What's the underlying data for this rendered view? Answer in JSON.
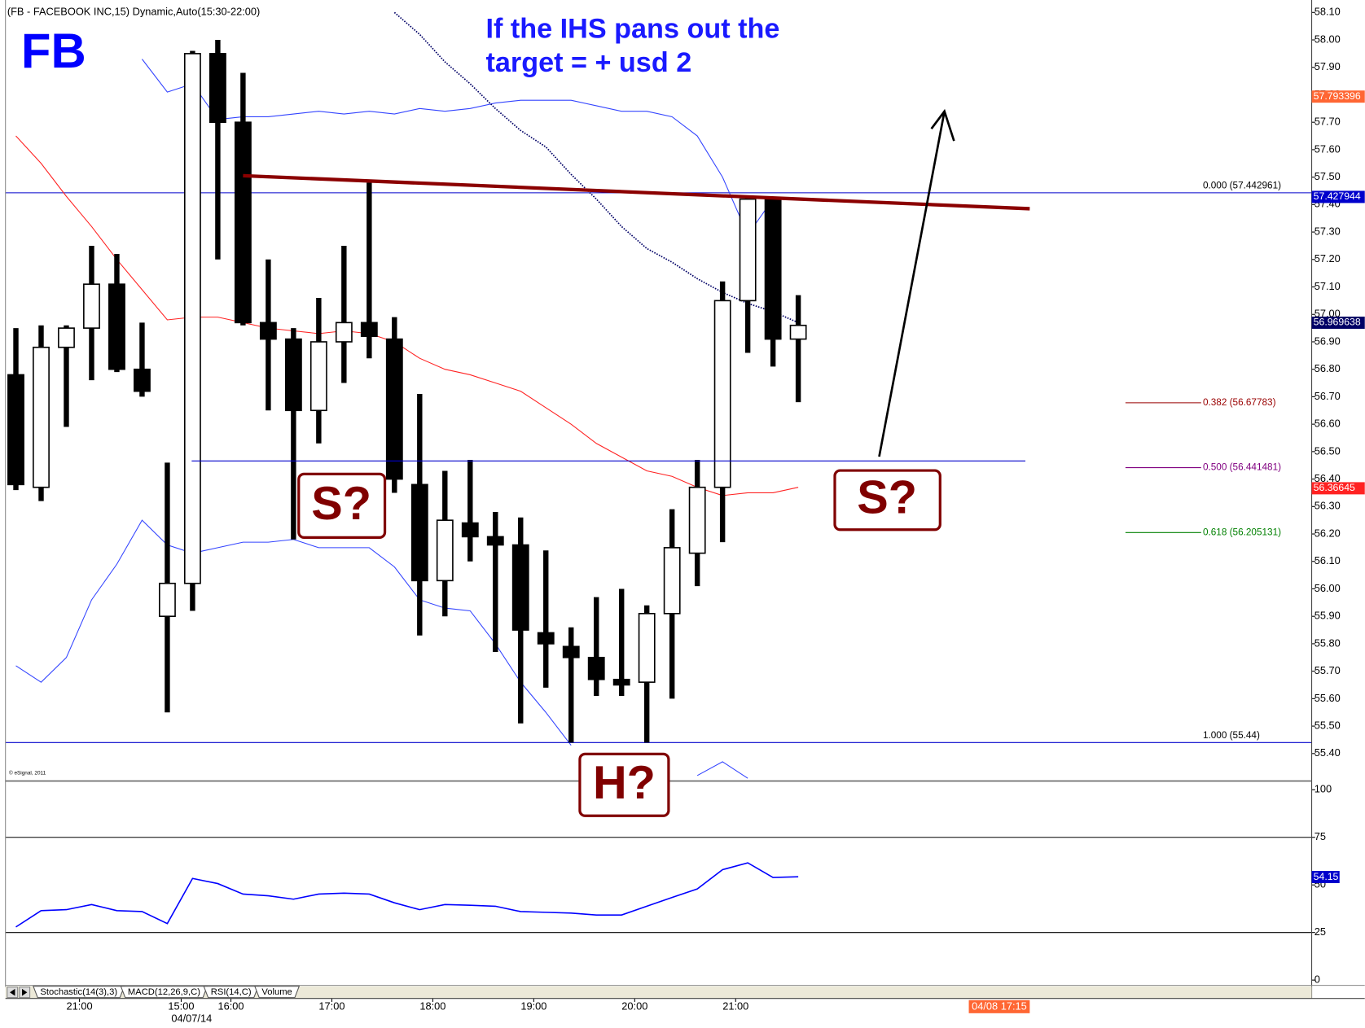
{
  "chart_data": {
    "type": "candlestick",
    "header": "(FB - FACEBOOK INC,15) Dynamic,Auto(15:30-22:00)",
    "title": "FB",
    "annotation": [
      "If the IHS pans out the",
      "target = + usd 2"
    ],
    "pattern_labels": [
      "S?",
      "S?",
      "H?"
    ],
    "copyright": "© eSignal, 2011",
    "candles": {
      "open": [
        56.78,
        56.37,
        56.88,
        56.95,
        57.11,
        56.8,
        55.9,
        56.02,
        57.95,
        57.7,
        56.97,
        56.91,
        56.65,
        56.9,
        56.97,
        56.91,
        56.38,
        56.03,
        56.24,
        56.19,
        56.16,
        55.84,
        55.79,
        55.75,
        55.67,
        55.66,
        55.91,
        56.13,
        56.37,
        57.05,
        57.42,
        56.91
      ],
      "high": [
        56.95,
        56.96,
        56.96,
        57.25,
        57.22,
        56.97,
        56.46,
        57.96,
        58.0,
        57.88,
        57.2,
        56.95,
        57.06,
        57.25,
        57.48,
        56.99,
        56.71,
        56.43,
        56.47,
        56.28,
        56.26,
        56.14,
        55.86,
        55.97,
        56.0,
        55.94,
        56.29,
        56.47,
        57.12,
        57.43,
        57.42,
        57.07
      ],
      "low": [
        56.36,
        56.32,
        56.59,
        56.76,
        56.79,
        56.7,
        55.55,
        55.92,
        57.2,
        56.96,
        56.65,
        56.18,
        56.53,
        56.75,
        56.84,
        56.35,
        55.83,
        55.9,
        56.1,
        55.77,
        55.51,
        55.64,
        55.44,
        55.61,
        55.61,
        55.44,
        55.6,
        56.01,
        56.17,
        56.86,
        56.81,
        56.68
      ],
      "close": [
        56.38,
        56.88,
        56.95,
        57.11,
        56.8,
        56.72,
        56.02,
        57.95,
        57.7,
        56.97,
        56.91,
        56.65,
        56.9,
        56.97,
        56.92,
        56.4,
        56.03,
        56.25,
        56.19,
        56.16,
        55.85,
        55.8,
        55.75,
        55.67,
        55.65,
        55.91,
        56.15,
        56.37,
        57.05,
        57.42,
        56.91,
        56.96
      ]
    },
    "overlays": [
      {
        "color": "#3344ff",
        "style": "solid",
        "values": [
          null,
          null,
          null,
          null,
          null,
          57.93,
          57.81,
          57.84,
          57.71,
          57.72,
          57.72,
          57.73,
          57.74,
          57.73,
          57.74,
          57.73,
          57.75,
          57.74,
          57.75,
          57.77,
          57.78,
          57.78,
          57.78,
          57.76,
          57.74,
          57.74,
          57.72,
          57.65,
          57.5,
          57.29,
          57.42,
          null
        ]
      },
      {
        "color": "#ff2222",
        "style": "solid",
        "values": [
          57.65,
          57.55,
          57.43,
          57.32,
          57.2,
          57.09,
          56.98,
          56.99,
          56.99,
          56.97,
          56.95,
          56.94,
          56.93,
          56.94,
          56.93,
          56.9,
          56.84,
          56.8,
          56.78,
          56.75,
          56.72,
          56.66,
          56.6,
          56.53,
          56.48,
          56.43,
          56.41,
          56.37,
          56.34,
          56.35,
          56.35,
          56.37
        ]
      },
      {
        "color": "#3344ff",
        "style": "solid",
        "values": [
          55.72,
          55.66,
          55.75,
          55.96,
          56.09,
          56.25,
          56.16,
          56.13,
          56.15,
          56.17,
          56.17,
          56.18,
          56.15,
          56.15,
          56.15,
          56.08,
          55.96,
          55.93,
          55.92,
          55.8,
          55.66,
          55.55,
          55.43,
          null,
          null,
          null,
          null,
          55.32,
          55.37,
          55.31,
          null,
          null
        ]
      },
      {
        "color": "#000066",
        "style": "dotted",
        "values": [
          null,
          null,
          null,
          null,
          null,
          null,
          null,
          null,
          null,
          null,
          null,
          null,
          null,
          null,
          null,
          58.1,
          58.02,
          57.92,
          57.84,
          57.75,
          57.67,
          57.61,
          57.51,
          57.42,
          57.32,
          57.24,
          57.19,
          57.13,
          57.08,
          57.04,
          57.01,
          56.97
        ]
      }
    ],
    "fib_levels": [
      {
        "value": 57.442961,
        "label": "0.000 (57.442961)",
        "color": "#000000",
        "line": "full"
      },
      {
        "value": 56.67783,
        "label": "0.382 (56.67783)",
        "color": "#990000",
        "line": "short"
      },
      {
        "value": 56.441481,
        "label": "0.500 (56.441481)",
        "color": "#800080",
        "line": "short"
      },
      {
        "value": 56.205131,
        "label": "0.618 (56.205131)",
        "color": "#008000",
        "line": "short"
      },
      {
        "value": 55.44,
        "label": "1.000 (55.44)",
        "color": "#000000",
        "line": "full"
      }
    ],
    "price_tags": [
      {
        "value": 57.793396,
        "color": "#ff6633"
      },
      {
        "value": 57.427944,
        "color": "#0000cc"
      },
      {
        "value": 56.969638,
        "color": "#000066"
      },
      {
        "value": 56.36645,
        "color": "#ff2222"
      }
    ],
    "ylim": [
      55.3,
      58.12
    ],
    "yticks": [
      {
        "value": 55.4,
        "label": "55.40"
      },
      {
        "value": 55.5,
        "label": "55.50"
      },
      {
        "value": 55.6,
        "label": "55.60"
      },
      {
        "value": 55.7,
        "label": "55.70"
      },
      {
        "value": 55.8,
        "label": "55.80"
      },
      {
        "value": 55.9,
        "label": "55.90"
      },
      {
        "value": 56,
        "label": "56.00"
      },
      {
        "value": 56.1,
        "label": "56.10"
      },
      {
        "value": 56.2,
        "label": "56.20"
      },
      {
        "value": 56.3,
        "label": "56.30"
      },
      {
        "value": 56.4,
        "label": "56.40"
      },
      {
        "value": 56.5,
        "label": "56.50"
      },
      {
        "value": 56.6,
        "label": "56.60"
      },
      {
        "value": 56.7,
        "label": "56.70"
      },
      {
        "value": 56.8,
        "label": "56.80"
      },
      {
        "value": 56.9,
        "label": "56.90"
      },
      {
        "value": 57,
        "label": "57.00"
      },
      {
        "value": 57.1,
        "label": "57.10"
      },
      {
        "value": 57.2,
        "label": "57.20"
      },
      {
        "value": 57.3,
        "label": "57.30"
      },
      {
        "value": 57.4,
        "label": "57.40"
      },
      {
        "value": 57.5,
        "label": "57.50"
      },
      {
        "value": 57.6,
        "label": "57.60"
      },
      {
        "value": 57.7,
        "label": "57.70"
      },
      {
        "value": 57.8,
        "label": "57.80"
      },
      {
        "value": 57.9,
        "label": "57.90"
      },
      {
        "value": 58,
        "label": "58.00"
      },
      {
        "value": 58.1,
        "label": "58.10"
      }
    ],
    "xticks": [
      {
        "value": 2.52,
        "label": "21:00"
      },
      {
        "value": 6.55,
        "label": "15:00"
      },
      {
        "value": 8.52,
        "label": "16:00"
      },
      {
        "value": 12.52,
        "label": "17:00"
      },
      {
        "value": 16.52,
        "label": "18:00"
      },
      {
        "value": 20.52,
        "label": "19:00"
      },
      {
        "value": 24.52,
        "label": "20:00"
      },
      {
        "value": 28.52,
        "label": "21:00"
      }
    ],
    "date_label": "04/07/14",
    "cursor_time": "04/08 17:15",
    "rsi": {
      "color": "#0000ff",
      "values": [
        27.9,
        36.5,
        37,
        39.7,
        36.5,
        36,
        29.7,
        53.4,
        50.7,
        45.2,
        44.3,
        42.5,
        45.2,
        45.7,
        45.2,
        40.6,
        37,
        39.7,
        39.3,
        38.8,
        36,
        35.6,
        35.2,
        34.2,
        34.2,
        38.8,
        43.4,
        47.9,
        58,
        61.6,
        53.9,
        54.3
      ],
      "last_value": 54.15,
      "ylim": [
        -3.7,
        104.6
      ],
      "yticks": [
        0,
        25,
        50,
        75,
        100
      ],
      "bands": [
        25,
        75
      ]
    },
    "tabs": [
      "Stochastic(14(3),3)",
      "MACD(12,26,9,C)",
      "RSI(14,C)",
      "Volume"
    ]
  }
}
